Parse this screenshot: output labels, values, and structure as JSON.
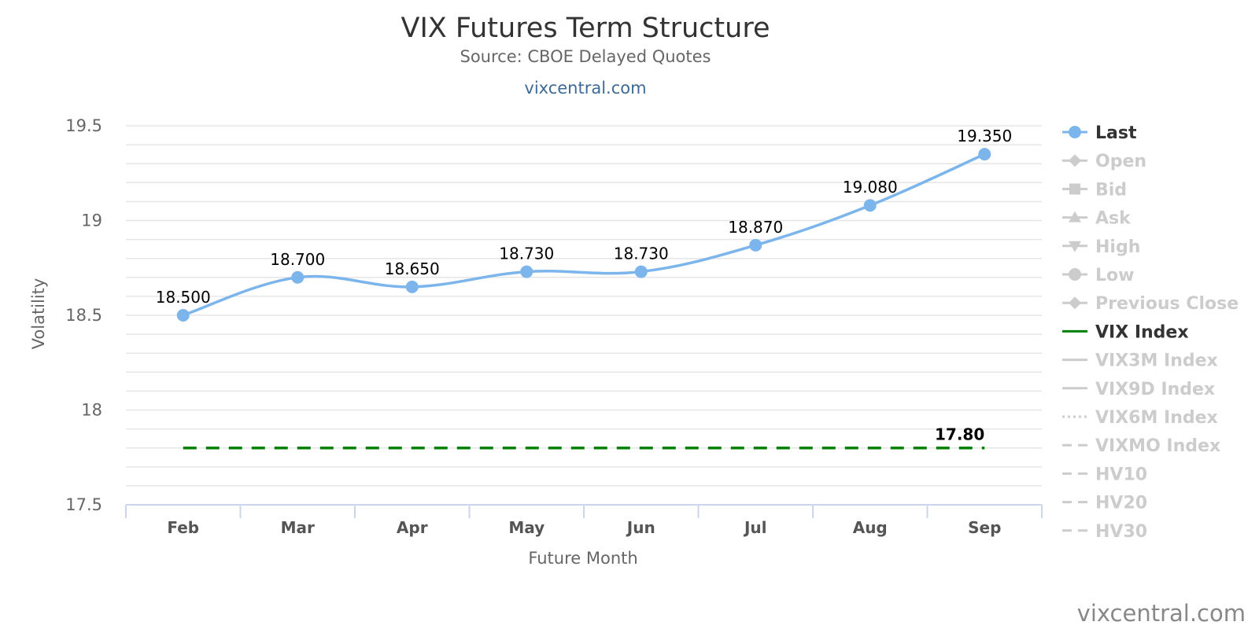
{
  "title": "VIX Futures Term Structure",
  "subtitle": "Source: CBOE Delayed Quotes",
  "credit_link": "vixcentral.com",
  "watermark": "vixcentral.com",
  "chart_data": {
    "type": "line",
    "title": "VIX Futures Term Structure",
    "subtitle": "Source: CBOE Delayed Quotes",
    "xlabel": "Future Month",
    "ylabel": "Volatility",
    "categories": [
      "Feb",
      "Mar",
      "Apr",
      "May",
      "Jun",
      "Jul",
      "Aug",
      "Sep"
    ],
    "ylim": [
      17.5,
      19.5
    ],
    "yticks": [
      17.5,
      18,
      18.5,
      19,
      19.5
    ],
    "ytick_labels": [
      "17.5",
      "18",
      "18.5",
      "19",
      "19.5"
    ],
    "grid": true,
    "legend_position": "right",
    "series": [
      {
        "name": "Last",
        "values": [
          18.5,
          18.7,
          18.65,
          18.73,
          18.73,
          18.87,
          19.08,
          19.35
        ],
        "labels": [
          "18.500",
          "18.700",
          "18.650",
          "18.730",
          "18.730",
          "18.870",
          "19.080",
          "19.350"
        ],
        "color": "#7cb5ec",
        "style": "smooth-line-markers"
      },
      {
        "name": "VIX Index",
        "values": [
          17.8,
          17.8,
          17.8,
          17.8,
          17.8,
          17.8,
          17.8,
          17.8
        ],
        "end_label": "17.80",
        "color": "#008000",
        "style": "dashed"
      }
    ],
    "legend": [
      {
        "name": "Last",
        "visible": true,
        "symbol": "circle-line",
        "color": "#7cb5ec",
        "text_color": "#333333"
      },
      {
        "name": "Open",
        "visible": false,
        "symbol": "diamond-line",
        "color": "#cccccc",
        "text_color": "#cccccc"
      },
      {
        "name": "Bid",
        "visible": false,
        "symbol": "square-line",
        "color": "#cccccc",
        "text_color": "#cccccc"
      },
      {
        "name": "Ask",
        "visible": false,
        "symbol": "triangle-line",
        "color": "#cccccc",
        "text_color": "#cccccc"
      },
      {
        "name": "High",
        "visible": false,
        "symbol": "triangle-down-line",
        "color": "#cccccc",
        "text_color": "#cccccc"
      },
      {
        "name": "Low",
        "visible": false,
        "symbol": "circle-line",
        "color": "#cccccc",
        "text_color": "#cccccc"
      },
      {
        "name": "Previous Close",
        "visible": false,
        "symbol": "diamond-line",
        "color": "#cccccc",
        "text_color": "#cccccc"
      },
      {
        "name": "VIX Index",
        "visible": true,
        "symbol": "solid-line",
        "color": "#008000",
        "text_color": "#333333"
      },
      {
        "name": "VIX3M Index",
        "visible": false,
        "symbol": "solid-line",
        "color": "#cccccc",
        "text_color": "#cccccc"
      },
      {
        "name": "VIX9D Index",
        "visible": false,
        "symbol": "solid-line",
        "color": "#cccccc",
        "text_color": "#cccccc"
      },
      {
        "name": "VIX6M Index",
        "visible": false,
        "symbol": "dotted-line",
        "color": "#cccccc",
        "text_color": "#cccccc"
      },
      {
        "name": "VIXMO Index",
        "visible": false,
        "symbol": "dashed-line",
        "color": "#cccccc",
        "text_color": "#cccccc"
      },
      {
        "name": "HV10",
        "visible": false,
        "symbol": "dashed-line",
        "color": "#cccccc",
        "text_color": "#cccccc"
      },
      {
        "name": "HV20",
        "visible": false,
        "symbol": "dashed-line",
        "color": "#cccccc",
        "text_color": "#cccccc"
      },
      {
        "name": "HV30",
        "visible": false,
        "symbol": "dashed-line",
        "color": "#cccccc",
        "text_color": "#cccccc"
      }
    ]
  }
}
